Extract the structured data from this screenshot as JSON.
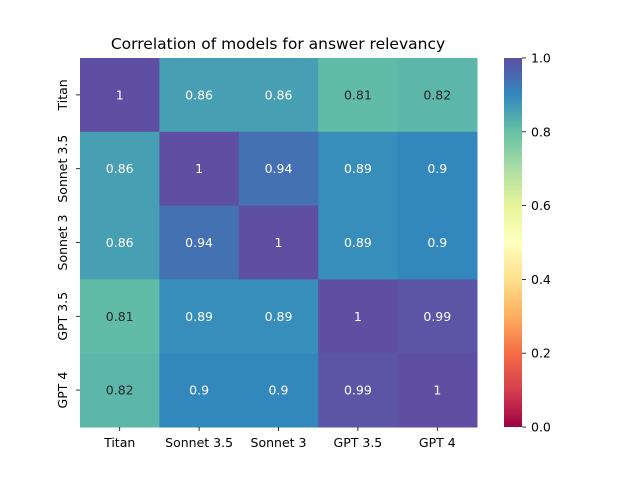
{
  "chart_data": {
    "type": "heatmap",
    "title": "Correlation of models for answer relevancy",
    "x_categories": [
      "Titan",
      "Sonnet 3.5",
      "Sonnet 3",
      "GPT 3.5",
      "GPT 4"
    ],
    "y_categories": [
      "Titan",
      "Sonnet 3.5",
      "Sonnet 3",
      "GPT 3.5",
      "GPT 4"
    ],
    "values": [
      [
        1,
        0.86,
        0.86,
        0.81,
        0.82
      ],
      [
        0.86,
        1,
        0.94,
        0.89,
        0.9
      ],
      [
        0.86,
        0.94,
        1,
        0.89,
        0.9
      ],
      [
        0.81,
        0.89,
        0.89,
        1,
        0.99
      ],
      [
        0.82,
        0.9,
        0.9,
        0.99,
        1
      ]
    ],
    "colorbar": {
      "range": [
        0.0,
        1.0
      ],
      "ticks": [
        "0.0",
        "0.2",
        "0.4",
        "0.6",
        "0.8",
        "1.0"
      ],
      "colormap": "Spectral"
    },
    "annotated": true,
    "grid": false
  }
}
